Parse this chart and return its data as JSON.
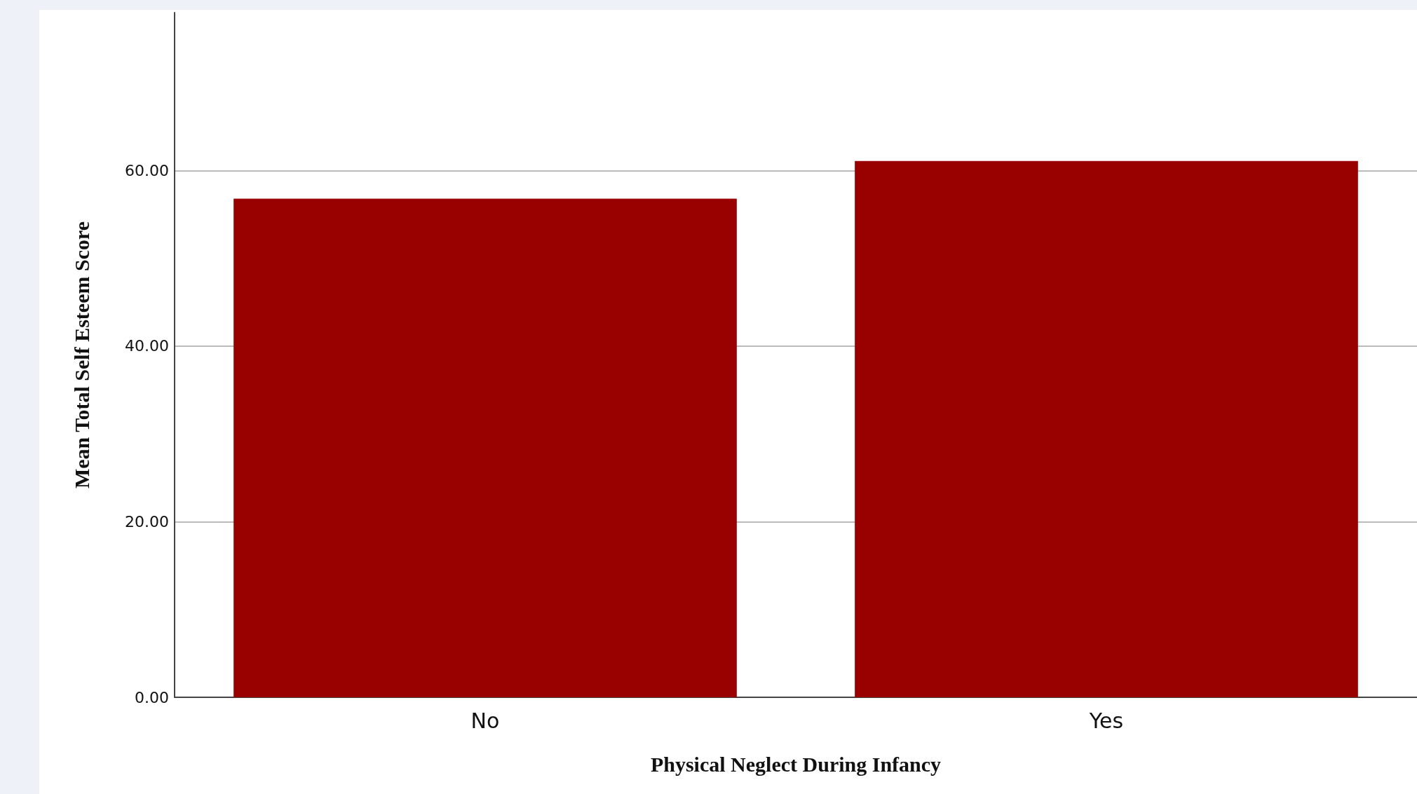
{
  "chart_data": {
    "type": "bar",
    "xlabel": "Physical Neglect During Infancy",
    "ylabel": "Mean Total Self Esteem Score",
    "categories": [
      "No",
      "Yes"
    ],
    "values": [
      56.8,
      61.1
    ],
    "color": "#990000",
    "ylim": [
      0,
      78
    ],
    "yticks": [
      {
        "value": 0,
        "label": "0.00"
      },
      {
        "value": 20,
        "label": "20.00"
      },
      {
        "value": 40,
        "label": "40.00"
      },
      {
        "value": 60,
        "label": "60.00"
      }
    ],
    "grid": "y"
  }
}
